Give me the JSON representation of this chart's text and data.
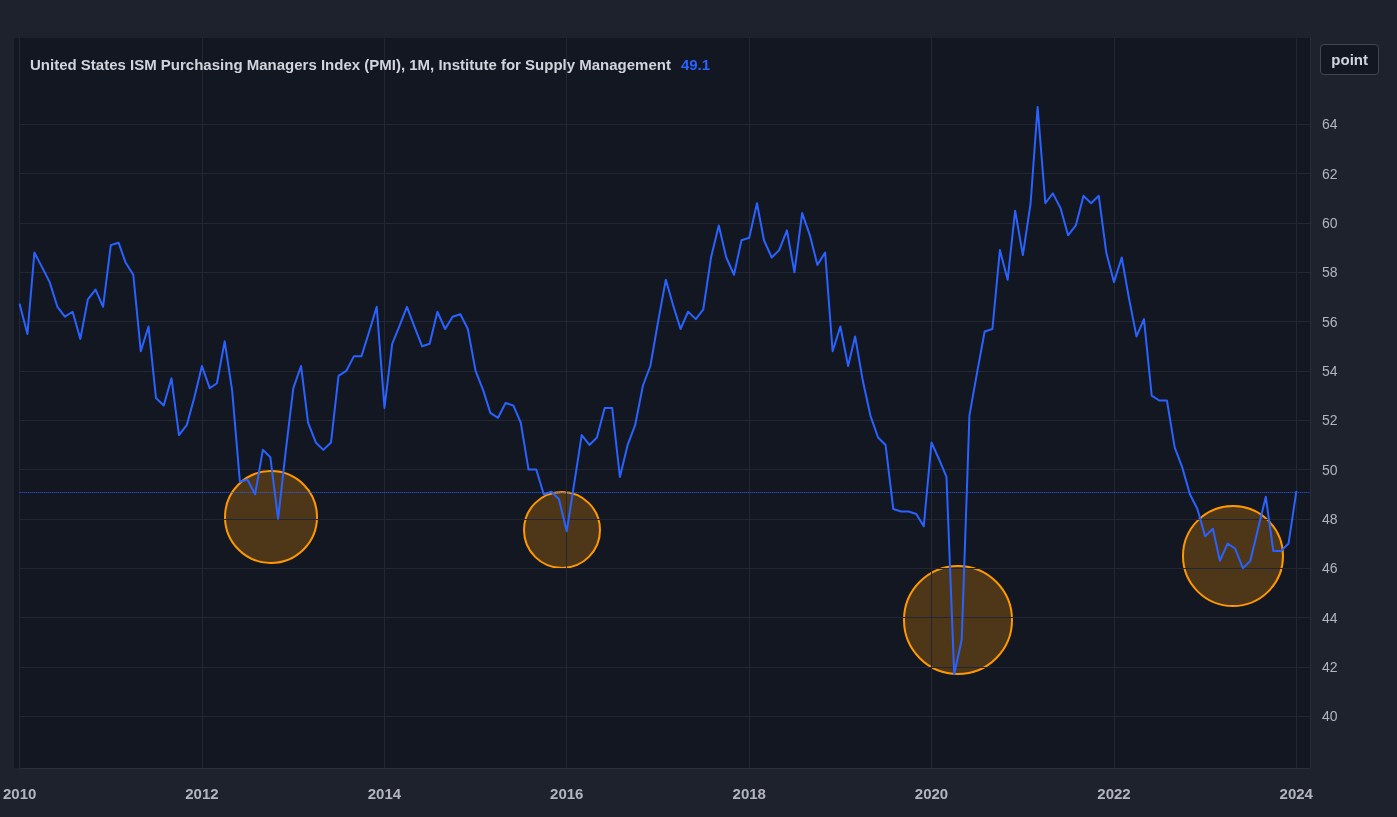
{
  "chart_data": {
    "type": "line",
    "title": "United States ISM Purchasing Managers Index (PMI), 1M, Institute for Supply Management",
    "annotations": [
      "point"
    ],
    "x": [
      "2010-01",
      "2010-02",
      "2010-03",
      "2010-04",
      "2010-05",
      "2010-06",
      "2010-07",
      "2010-08",
      "2010-09",
      "2010-10",
      "2010-11",
      "2010-12",
      "2011-01",
      "2011-02",
      "2011-03",
      "2011-04",
      "2011-05",
      "2011-06",
      "2011-07",
      "2011-08",
      "2011-09",
      "2011-10",
      "2011-11",
      "2011-12",
      "2012-01",
      "2012-02",
      "2012-03",
      "2012-04",
      "2012-05",
      "2012-06",
      "2012-07",
      "2012-08",
      "2012-09",
      "2012-10",
      "2012-11",
      "2012-12",
      "2013-01",
      "2013-02",
      "2013-03",
      "2013-04",
      "2013-05",
      "2013-06",
      "2013-07",
      "2013-08",
      "2013-09",
      "2013-10",
      "2013-11",
      "2013-12",
      "2014-01",
      "2014-02",
      "2014-03",
      "2014-04",
      "2014-05",
      "2014-06",
      "2014-07",
      "2014-08",
      "2014-09",
      "2014-10",
      "2014-11",
      "2014-12",
      "2015-01",
      "2015-02",
      "2015-03",
      "2015-04",
      "2015-05",
      "2015-06",
      "2015-07",
      "2015-08",
      "2015-09",
      "2015-10",
      "2015-11",
      "2015-12",
      "2016-01",
      "2016-02",
      "2016-03",
      "2016-04",
      "2016-05",
      "2016-06",
      "2016-07",
      "2016-08",
      "2016-09",
      "2016-10",
      "2016-11",
      "2016-12",
      "2017-01",
      "2017-02",
      "2017-03",
      "2017-04",
      "2017-05",
      "2017-06",
      "2017-07",
      "2017-08",
      "2017-09",
      "2017-10",
      "2017-11",
      "2017-12",
      "2018-01",
      "2018-02",
      "2018-03",
      "2018-04",
      "2018-05",
      "2018-06",
      "2018-07",
      "2018-08",
      "2018-09",
      "2018-10",
      "2018-11",
      "2018-12",
      "2019-01",
      "2019-02",
      "2019-03",
      "2019-04",
      "2019-05",
      "2019-06",
      "2019-07",
      "2019-08",
      "2019-09",
      "2019-10",
      "2019-11",
      "2019-12",
      "2020-01",
      "2020-02",
      "2020-03",
      "2020-04",
      "2020-05",
      "2020-06",
      "2020-07",
      "2020-08",
      "2020-09",
      "2020-10",
      "2020-11",
      "2020-12",
      "2021-01",
      "2021-02",
      "2021-03",
      "2021-04",
      "2021-05",
      "2021-06",
      "2021-07",
      "2021-08",
      "2021-09",
      "2021-10",
      "2021-11",
      "2021-12",
      "2022-01",
      "2022-02",
      "2022-03",
      "2022-04",
      "2022-05",
      "2022-06",
      "2022-07",
      "2022-08",
      "2022-09",
      "2022-10",
      "2022-11",
      "2022-12",
      "2023-01",
      "2023-02",
      "2023-03",
      "2023-04",
      "2023-05",
      "2023-06",
      "2023-07",
      "2023-08",
      "2023-09",
      "2023-10",
      "2023-11",
      "2023-12",
      "2024-01"
    ],
    "series": [
      {
        "color": "#2962ff",
        "values": [
          56.7,
          55.5,
          58.8,
          58.2,
          57.6,
          56.6,
          56.2,
          56.4,
          55.3,
          56.9,
          57.3,
          56.6,
          59.1,
          59.2,
          58.4,
          57.9,
          54.8,
          55.8,
          52.9,
          52.6,
          53.7,
          51.4,
          51.8,
          52.9,
          54.2,
          53.3,
          53.5,
          55.2,
          53.2,
          49.5,
          49.6,
          49.0,
          50.8,
          50.5,
          48.0,
          50.7,
          53.3,
          54.2,
          51.9,
          51.1,
          50.8,
          51.1,
          53.8,
          54.0,
          54.6,
          54.6,
          55.6,
          56.6,
          52.5,
          55.1,
          55.8,
          56.6,
          55.8,
          55.0,
          55.1,
          56.4,
          55.7,
          56.2,
          56.3,
          55.7,
          54.0,
          53.2,
          52.3,
          52.1,
          52.7,
          52.6,
          51.9,
          50.0,
          50.0,
          49.0,
          49.1,
          48.8,
          47.5,
          49.5,
          51.4,
          51.0,
          51.3,
          52.5,
          52.5,
          49.7,
          51.0,
          51.8,
          53.4,
          54.2,
          56.0,
          57.7,
          56.7,
          55.7,
          56.4,
          56.1,
          56.5,
          58.6,
          59.9,
          58.6,
          57.9,
          59.3,
          59.4,
          60.8,
          59.3,
          58.6,
          58.9,
          59.7,
          58.0,
          60.4,
          59.5,
          58.3,
          58.8,
          54.8,
          55.8,
          54.2,
          55.4,
          53.6,
          52.2,
          51.3,
          51.0,
          48.4,
          48.3,
          48.3,
          48.2,
          47.7,
          51.1,
          50.4,
          49.7,
          41.7,
          43.1,
          52.2,
          53.9,
          55.6,
          55.7,
          58.9,
          57.7,
          60.5,
          58.7,
          60.8,
          64.7,
          60.8,
          61.2,
          60.6,
          59.5,
          59.9,
          61.1,
          60.8,
          61.1,
          58.8,
          57.6,
          58.6,
          57.0,
          55.4,
          56.1,
          53.0,
          52.8,
          52.8,
          50.9,
          50.1,
          49.0,
          48.4,
          47.3,
          47.6,
          46.3,
          47.0,
          46.8,
          46.0,
          46.3,
          47.6,
          48.9,
          46.7,
          46.7,
          47.0,
          49.1
        ]
      }
    ],
    "xlim": [
      "2010-01",
      "2024-02-25"
    ],
    "xticks": [
      {
        "value": "2010",
        "label": "2010"
      },
      {
        "value": "2012",
        "label": "2012"
      },
      {
        "value": "2014",
        "label": "2014"
      },
      {
        "value": "2016",
        "label": "2016"
      },
      {
        "value": "2018",
        "label": "2018"
      },
      {
        "value": "2020",
        "label": "2020"
      },
      {
        "value": "2022",
        "label": "2022"
      },
      {
        "value": "2024",
        "label": "2024"
      }
    ],
    "ylim": [
      37.9,
      67.5
    ],
    "yticks": [
      40,
      42,
      44,
      46,
      48,
      50,
      52,
      54,
      56,
      58,
      60,
      62,
      64
    ],
    "ref_lines": [
      {
        "axis": "y",
        "value": 49.1,
        "label": "49.1",
        "color": "#2962ff",
        "line_style": "dotted"
      }
    ],
    "grid": true,
    "line_style": "solid"
  }
}
